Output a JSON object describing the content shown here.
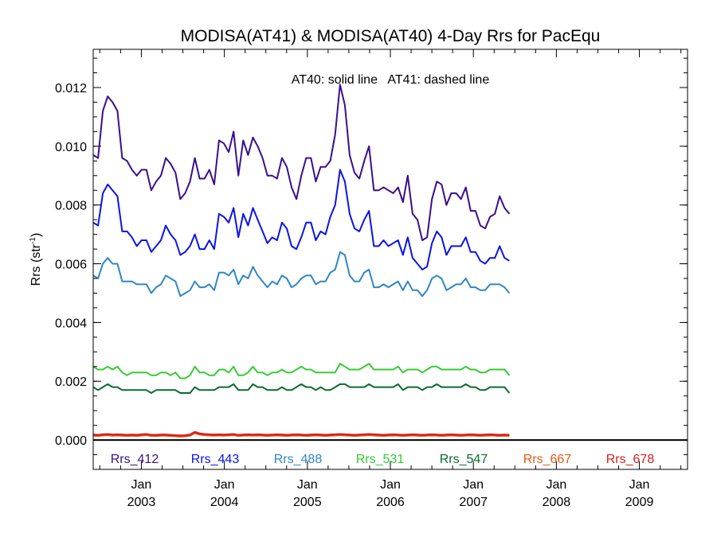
{
  "chart_data": {
    "type": "line",
    "title": "MODISA(AT41) & MODISA(AT40) 4-Day Rrs for PacEqu",
    "annotation": "AT40: solid line   AT41: dashed line",
    "ylabel": "Rrs (str",
    "ylabel_sup": "-1",
    "ylabel_close": ")",
    "ylim": [
      -0.001,
      0.0133
    ],
    "xlim": [
      2002.42,
      2009.58
    ],
    "x_ticks": [
      {
        "x": 2003.0,
        "month": "Jan",
        "year": "2003"
      },
      {
        "x": 2004.0,
        "month": "Jan",
        "year": "2004"
      },
      {
        "x": 2005.0,
        "month": "Jan",
        "year": "2005"
      },
      {
        "x": 2006.0,
        "month": "Jan",
        "year": "2006"
      },
      {
        "x": 2007.0,
        "month": "Jan",
        "year": "2007"
      },
      {
        "x": 2008.0,
        "month": "Jan",
        "year": "2008"
      },
      {
        "x": 2009.0,
        "month": "Jan",
        "year": "2009"
      }
    ],
    "y_ticks": [
      {
        "v": 0.0,
        "label": "0.000"
      },
      {
        "v": 0.002,
        "label": "0.002"
      },
      {
        "v": 0.004,
        "label": "0.004"
      },
      {
        "v": 0.006,
        "label": "0.006"
      },
      {
        "v": 0.008,
        "label": "0.008"
      },
      {
        "v": 0.01,
        "label": "0.010"
      },
      {
        "v": 0.012,
        "label": "0.012"
      }
    ],
    "zero_line": 0.0,
    "x_start": 2002.42,
    "x_step": 0.0583,
    "series": [
      {
        "name": "Rrs_412",
        "color": "#3a0f8a",
        "width": 2,
        "values": [
          0.0097,
          0.0096,
          0.0112,
          0.0117,
          0.0115,
          0.0112,
          0.0096,
          0.0095,
          0.0092,
          0.009,
          0.0092,
          0.0092,
          0.0085,
          0.0088,
          0.009,
          0.0096,
          0.0094,
          0.0091,
          0.0082,
          0.0084,
          0.0088,
          0.0096,
          0.0089,
          0.0089,
          0.0092,
          0.0087,
          0.0102,
          0.0101,
          0.0098,
          0.0105,
          0.009,
          0.0102,
          0.0097,
          0.0103,
          0.01,
          0.0096,
          0.009,
          0.009,
          0.0089,
          0.0096,
          0.0093,
          0.0086,
          0.0082,
          0.009,
          0.0096,
          0.0096,
          0.0088,
          0.0093,
          0.0093,
          0.0095,
          0.0104,
          0.0121,
          0.0114,
          0.0097,
          0.0091,
          0.0089,
          0.0095,
          0.01,
          0.0085,
          0.0085,
          0.0086,
          0.0085,
          0.0084,
          0.0086,
          0.0081,
          0.009,
          0.0077,
          0.0075,
          0.0068,
          0.0069,
          0.0082,
          0.0088,
          0.0087,
          0.008,
          0.0084,
          0.0084,
          0.0082,
          0.0086,
          0.0078,
          0.0078,
          0.0073,
          0.0072,
          0.0076,
          0.0077,
          0.0083,
          0.0079,
          0.0077
        ]
      },
      {
        "name": "Rrs_443",
        "color": "#0a14e6",
        "width": 2,
        "values": [
          0.0074,
          0.0073,
          0.0084,
          0.0087,
          0.0085,
          0.0083,
          0.0071,
          0.0071,
          0.0069,
          0.0066,
          0.0068,
          0.0068,
          0.0064,
          0.0066,
          0.0068,
          0.0073,
          0.007,
          0.0068,
          0.0063,
          0.0064,
          0.0066,
          0.007,
          0.0065,
          0.0065,
          0.0068,
          0.0065,
          0.0077,
          0.0076,
          0.0074,
          0.0079,
          0.0069,
          0.0077,
          0.0073,
          0.0079,
          0.0075,
          0.0071,
          0.0067,
          0.0069,
          0.0068,
          0.0074,
          0.0072,
          0.0066,
          0.0065,
          0.0069,
          0.0074,
          0.0074,
          0.0068,
          0.0071,
          0.007,
          0.0076,
          0.008,
          0.0092,
          0.0088,
          0.0077,
          0.0072,
          0.0071,
          0.0075,
          0.0078,
          0.0066,
          0.0066,
          0.0068,
          0.0066,
          0.0067,
          0.0068,
          0.0063,
          0.0069,
          0.0062,
          0.006,
          0.0058,
          0.0059,
          0.0067,
          0.0071,
          0.0069,
          0.0063,
          0.0066,
          0.0066,
          0.0066,
          0.0069,
          0.0064,
          0.0064,
          0.0061,
          0.006,
          0.0062,
          0.0062,
          0.0066,
          0.0062,
          0.0061
        ]
      },
      {
        "name": "Rrs_488",
        "color": "#2e86c8",
        "width": 2,
        "values": [
          0.0056,
          0.0055,
          0.006,
          0.0062,
          0.006,
          0.006,
          0.0054,
          0.0054,
          0.0054,
          0.0053,
          0.0053,
          0.0053,
          0.005,
          0.0052,
          0.0053,
          0.0056,
          0.0055,
          0.0054,
          0.0049,
          0.005,
          0.0051,
          0.0054,
          0.0052,
          0.0052,
          0.0053,
          0.0051,
          0.0057,
          0.0057,
          0.0056,
          0.0058,
          0.0053,
          0.0056,
          0.0055,
          0.0059,
          0.0056,
          0.0054,
          0.0052,
          0.0054,
          0.0053,
          0.0056,
          0.0055,
          0.0052,
          0.0053,
          0.0055,
          0.0056,
          0.0056,
          0.0053,
          0.0054,
          0.0054,
          0.0057,
          0.0058,
          0.0064,
          0.0063,
          0.0056,
          0.0054,
          0.0054,
          0.0057,
          0.0058,
          0.0052,
          0.0052,
          0.0053,
          0.0052,
          0.0053,
          0.0054,
          0.0051,
          0.0054,
          0.0051,
          0.0051,
          0.0049,
          0.0051,
          0.0055,
          0.0056,
          0.0055,
          0.0051,
          0.0052,
          0.0053,
          0.0053,
          0.0055,
          0.0052,
          0.0052,
          0.0051,
          0.0051,
          0.0053,
          0.0053,
          0.0053,
          0.0052,
          0.005
        ]
      },
      {
        "name": "Rrs_531",
        "color": "#33cc33",
        "width": 2,
        "values": [
          0.0025,
          0.0024,
          0.0024,
          0.0025,
          0.0024,
          0.0025,
          0.0023,
          0.0022,
          0.0023,
          0.0023,
          0.0023,
          0.0023,
          0.0022,
          0.0022,
          0.0023,
          0.0023,
          0.0022,
          0.0023,
          0.0021,
          0.0021,
          0.0022,
          0.0025,
          0.0023,
          0.0023,
          0.0022,
          0.0022,
          0.0024,
          0.0024,
          0.0023,
          0.0025,
          0.0022,
          0.0022,
          0.0023,
          0.0025,
          0.0023,
          0.0023,
          0.0022,
          0.0023,
          0.0023,
          0.0024,
          0.0023,
          0.0023,
          0.0024,
          0.0025,
          0.0024,
          0.0024,
          0.0023,
          0.0023,
          0.0023,
          0.0023,
          0.0023,
          0.0026,
          0.0025,
          0.0024,
          0.0024,
          0.0024,
          0.0025,
          0.0026,
          0.0024,
          0.0024,
          0.0024,
          0.0024,
          0.0024,
          0.0025,
          0.0023,
          0.0024,
          0.0024,
          0.0024,
          0.0023,
          0.0024,
          0.0025,
          0.0025,
          0.0024,
          0.0024,
          0.0024,
          0.0024,
          0.0024,
          0.0025,
          0.0024,
          0.0024,
          0.0023,
          0.0023,
          0.0024,
          0.0024,
          0.0024,
          0.0024,
          0.0022
        ]
      },
      {
        "name": "Rrs_547",
        "color": "#0a6b2e",
        "width": 2,
        "values": [
          0.0018,
          0.0017,
          0.0018,
          0.0019,
          0.0018,
          0.0018,
          0.0017,
          0.0017,
          0.0017,
          0.0017,
          0.0017,
          0.0017,
          0.0016,
          0.0017,
          0.0017,
          0.0017,
          0.0017,
          0.0017,
          0.0016,
          0.0016,
          0.0016,
          0.0018,
          0.0017,
          0.0017,
          0.0017,
          0.0017,
          0.0018,
          0.0018,
          0.0018,
          0.0019,
          0.0017,
          0.0017,
          0.0017,
          0.0019,
          0.0018,
          0.0018,
          0.0017,
          0.0017,
          0.0017,
          0.0018,
          0.0017,
          0.0017,
          0.0018,
          0.0019,
          0.0018,
          0.0018,
          0.0017,
          0.0018,
          0.0017,
          0.0017,
          0.0018,
          0.0019,
          0.0019,
          0.0018,
          0.0018,
          0.0018,
          0.0018,
          0.0019,
          0.0018,
          0.0018,
          0.0018,
          0.0018,
          0.0018,
          0.0019,
          0.0017,
          0.0018,
          0.0018,
          0.0018,
          0.0017,
          0.0018,
          0.0018,
          0.0019,
          0.0018,
          0.0018,
          0.0018,
          0.0018,
          0.0018,
          0.0019,
          0.0018,
          0.0018,
          0.0017,
          0.0017,
          0.0018,
          0.0018,
          0.0018,
          0.0018,
          0.0016
        ]
      },
      {
        "name": "Rrs_667",
        "color": "#e85a0f",
        "width": 2.5,
        "values": [
          0.00015,
          0.00014,
          0.00016,
          0.00017,
          0.00015,
          0.00016,
          0.00015,
          0.00014,
          0.00015,
          0.00014,
          0.00016,
          0.00017,
          0.00014,
          0.00014,
          0.00015,
          0.00015,
          0.00014,
          0.00013,
          0.00012,
          0.00013,
          0.00015,
          0.00024,
          0.00019,
          0.00017,
          0.00016,
          0.00015,
          0.00016,
          0.00015,
          0.00016,
          0.00017,
          0.00014,
          0.00015,
          0.00016,
          0.00015,
          0.00016,
          0.00015,
          0.00014,
          0.00015,
          0.00016,
          0.00015,
          0.00014,
          0.00015,
          0.00016,
          0.00015,
          0.00014,
          0.00015,
          0.00016,
          0.00015,
          0.00014,
          0.00015,
          0.00016,
          0.00017,
          0.00016,
          0.00015,
          0.00014,
          0.00015,
          0.00016,
          0.00017,
          0.00016,
          0.00015,
          0.00014,
          0.00015,
          0.00016,
          0.00015,
          0.00014,
          0.00015,
          0.00016,
          0.00015,
          0.00014,
          0.00015,
          0.00016,
          0.00015,
          0.00014,
          0.00015,
          0.00016,
          0.00015,
          0.00014,
          0.00015,
          0.00016,
          0.00015,
          0.00014,
          0.00015,
          0.00016,
          0.00015,
          0.00014,
          0.00015,
          0.00014
        ]
      },
      {
        "name": "Rrs_678",
        "color": "#d62020",
        "width": 2.5,
        "values": [
          0.00018,
          0.00017,
          0.00019,
          0.0002,
          0.00018,
          0.00019,
          0.00018,
          0.00017,
          0.00018,
          0.00017,
          0.00019,
          0.0002,
          0.00017,
          0.00017,
          0.00018,
          0.00018,
          0.00017,
          0.00016,
          0.00015,
          0.00016,
          0.00018,
          0.00027,
          0.00022,
          0.0002,
          0.00019,
          0.00018,
          0.00019,
          0.00018,
          0.00019,
          0.0002,
          0.00017,
          0.00018,
          0.00019,
          0.00018,
          0.00019,
          0.00018,
          0.00017,
          0.00018,
          0.00019,
          0.00018,
          0.00017,
          0.00018,
          0.00019,
          0.00018,
          0.00017,
          0.00018,
          0.00019,
          0.00018,
          0.00017,
          0.00018,
          0.00019,
          0.0002,
          0.00019,
          0.00018,
          0.00017,
          0.00018,
          0.00019,
          0.0002,
          0.00019,
          0.00018,
          0.00017,
          0.00018,
          0.00019,
          0.00018,
          0.00017,
          0.00018,
          0.00019,
          0.00018,
          0.00017,
          0.00018,
          0.00019,
          0.00018,
          0.00017,
          0.00018,
          0.00019,
          0.00018,
          0.00017,
          0.00018,
          0.00019,
          0.00018,
          0.00017,
          0.00018,
          0.00019,
          0.00018,
          0.00017,
          0.00018,
          0.00017
        ]
      }
    ]
  }
}
